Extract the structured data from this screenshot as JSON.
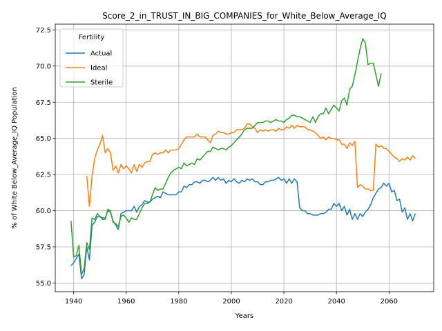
{
  "chart_data": {
    "type": "line",
    "title": "Score_2_in_TRUST_IN_BIG_COMPANIES_for_White_Below_Average_IQ",
    "xlabel": "Years",
    "ylabel": "% of White Below_Average_IQ Population",
    "legend_title": "Fertility",
    "legend_loc": "upper left",
    "grid": true,
    "xlim": [
      1933,
      2077
    ],
    "ylim": [
      54.4,
      72.9
    ],
    "xticks": [
      1940,
      1960,
      1980,
      2000,
      2020,
      2040,
      2060
    ],
    "yticks": [
      {
        "value": 55,
        "label": "55.0"
      },
      57.5,
      {
        "value": 60,
        "label": "60.0"
      },
      62.5,
      {
        "value": 65,
        "label": "65.0"
      },
      67.5,
      {
        "value": 70,
        "label": "70.0"
      },
      72.5
    ],
    "x": [
      1939,
      1940,
      1941,
      1942,
      1943,
      1944,
      1945,
      1946,
      1947,
      1948,
      1949,
      1950,
      1951,
      1952,
      1953,
      1954,
      1955,
      1956,
      1957,
      1958,
      1959,
      1960,
      1961,
      1962,
      1963,
      1964,
      1965,
      1966,
      1967,
      1968,
      1969,
      1970,
      1971,
      1972,
      1973,
      1974,
      1975,
      1976,
      1977,
      1978,
      1979,
      1980,
      1981,
      1982,
      1983,
      1984,
      1985,
      1986,
      1987,
      1988,
      1989,
      1990,
      1991,
      1992,
      1993,
      1994,
      1995,
      1996,
      1997,
      1998,
      1999,
      2000,
      2001,
      2002,
      2003,
      2004,
      2005,
      2006,
      2007,
      2008,
      2009,
      2010,
      2011,
      2012,
      2013,
      2014,
      2015,
      2016,
      2017,
      2018,
      2019,
      2020,
      2021,
      2022,
      2023,
      2024,
      2025,
      2026,
      2027,
      2028,
      2029,
      2030,
      2031,
      2032,
      2033,
      2034,
      2035,
      2036,
      2037,
      2038,
      2039,
      2040,
      2041,
      2042,
      2043,
      2044,
      2045,
      2046,
      2047,
      2048,
      2049,
      2050,
      2051,
      2052,
      2053,
      2054,
      2055,
      2056,
      2057,
      2058,
      2059,
      2060,
      2061,
      2062,
      2063,
      2064,
      2065,
      2066,
      2067,
      2068,
      2069,
      2070
    ],
    "series": [
      {
        "name": "Actual",
        "color": "#1f77b4",
        "values": [
          56.2,
          56.4,
          56.7,
          57.0,
          55.3,
          55.6,
          57.5,
          56.6,
          59.0,
          59.2,
          59.6,
          59.6,
          59.5,
          59.5,
          60.0,
          59.9,
          59.3,
          59.0,
          58.7,
          59.8,
          59.9,
          60.0,
          60.0,
          60.0,
          60.3,
          59.9,
          60.3,
          60.4,
          60.7,
          60.6,
          60.6,
          60.8,
          60.9,
          61.0,
          60.9,
          61.3,
          61.2,
          61.1,
          61.1,
          61.1,
          61.1,
          61.3,
          61.3,
          61.7,
          61.6,
          61.8,
          61.8,
          62.0,
          62.0,
          61.9,
          62.1,
          62.1,
          62.0,
          62.1,
          62.3,
          62.1,
          62.3,
          62.1,
          62.2,
          61.9,
          62.1,
          62.0,
          62.2,
          62.0,
          61.9,
          62.1,
          62.0,
          62.2,
          62.1,
          62.2,
          62.0,
          62.0,
          61.8,
          61.8,
          62.0,
          62.0,
          62.1,
          62.1,
          62.2,
          62.3,
          62.1,
          62.2,
          61.9,
          62.2,
          61.9,
          62.2,
          62.0,
          60.2,
          60.0,
          60.0,
          59.8,
          59.8,
          59.7,
          59.7,
          59.7,
          59.8,
          59.8,
          59.9,
          60.1,
          60.1,
          60.5,
          60.3,
          60.5,
          60.0,
          60.3,
          59.7,
          60.1,
          59.4,
          59.8,
          59.4,
          59.8,
          59.6,
          59.9,
          60.1,
          60.4,
          60.9,
          61.2,
          61.5,
          61.6,
          61.9,
          61.7,
          61.9,
          61.3,
          61.4,
          60.7,
          60.8,
          59.9,
          60.2,
          59.4,
          59.8,
          59.3,
          59.8
        ]
      },
      {
        "name": "Ideal",
        "color": "#ff7f0e",
        "values": [
          null,
          null,
          null,
          null,
          null,
          null,
          62.4,
          60.3,
          62.4,
          63.6,
          64.2,
          64.6,
          65.2,
          64.0,
          64.3,
          64.0,
          62.8,
          63.1,
          62.6,
          63.2,
          62.9,
          63.1,
          62.9,
          62.6,
          63.2,
          62.7,
          63.2,
          63.0,
          63.3,
          63.4,
          63.4,
          63.9,
          64.0,
          63.9,
          64.0,
          64.0,
          64.2,
          64.0,
          64.2,
          64.2,
          64.2,
          64.3,
          64.6,
          64.9,
          65.1,
          65.1,
          65.1,
          65.1,
          65.3,
          65.1,
          65.1,
          65.1,
          64.9,
          64.7,
          65.2,
          65.3,
          65.5,
          65.4,
          65.4,
          65.3,
          65.3,
          65.4,
          65.4,
          65.6,
          65.6,
          65.6,
          65.7,
          66.0,
          66.0,
          65.8,
          65.7,
          65.4,
          65.6,
          65.5,
          65.6,
          65.5,
          65.6,
          65.6,
          65.5,
          65.7,
          65.6,
          65.6,
          65.8,
          65.7,
          65.9,
          65.7,
          65.9,
          65.8,
          65.8,
          65.8,
          65.6,
          65.6,
          65.5,
          65.4,
          65.2,
          65.0,
          65.1,
          64.9,
          65.1,
          65.0,
          65.0,
          64.9,
          64.9,
          64.6,
          64.6,
          64.3,
          64.7,
          64.5,
          64.8,
          61.6,
          61.8,
          61.7,
          61.5,
          61.5,
          61.4,
          61.4,
          64.6,
          64.4,
          64.5,
          64.3,
          64.3,
          64.1,
          63.9,
          63.7,
          63.6,
          63.4,
          63.6,
          63.5,
          63.7,
          63.5,
          63.8,
          63.6
        ]
      },
      {
        "name": "Sterile",
        "color": "#2ca02c",
        "values": [
          59.3,
          56.8,
          56.9,
          57.6,
          55.6,
          56.0,
          57.8,
          57.3,
          59.5,
          59.4,
          59.8,
          59.6,
          59.4,
          59.4,
          60.1,
          60.0,
          59.2,
          59.1,
          58.9,
          59.6,
          59.7,
          59.5,
          59.2,
          59.5,
          59.4,
          59.4,
          59.8,
          60.2,
          60.5,
          60.5,
          60.6,
          61.1,
          61.6,
          61.4,
          61.5,
          61.5,
          61.9,
          62.3,
          62.6,
          62.8,
          62.9,
          63.0,
          62.9,
          63.3,
          63.1,
          63.2,
          63.3,
          63.2,
          63.6,
          63.5,
          63.7,
          63.9,
          64.1,
          64.1,
          64.4,
          64.3,
          64.2,
          64.3,
          64.3,
          64.2,
          64.4,
          64.5,
          64.7,
          64.9,
          65.1,
          65.3,
          65.6,
          65.7,
          65.7,
          65.7,
          65.9,
          66.1,
          66.1,
          66.1,
          66.2,
          66.2,
          66.1,
          66.2,
          66.3,
          66.2,
          66.2,
          66.1,
          66.3,
          66.4,
          66.6,
          66.6,
          66.5,
          66.5,
          66.4,
          66.3,
          66.2,
          66.1,
          66.5,
          66.1,
          66.5,
          66.7,
          66.7,
          67.1,
          66.7,
          67.0,
          67.3,
          67.1,
          66.9,
          67.6,
          67.8,
          67.3,
          68.4,
          68.6,
          69.4,
          70.3,
          71.2,
          71.9,
          71.6,
          70.1,
          70.2,
          70.2,
          69.4,
          68.6,
          69.5,
          null,
          null,
          null,
          null,
          null,
          null,
          null,
          null,
          null,
          null,
          null,
          null,
          null
        ]
      }
    ]
  }
}
